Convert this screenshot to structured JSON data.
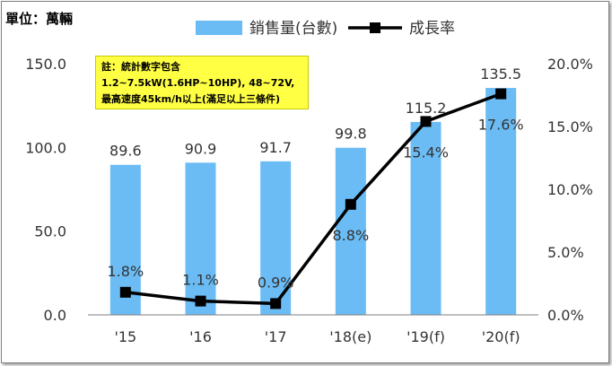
{
  "unit_label": "單位：萬輛",
  "note": {
    "line1": "註：統計數字包含",
    "line2": "1.2~7.5kW(1.6HP~10HP), 48~72V,",
    "line3": "最高速度45km/h以上(滿足以上三條件)"
  },
  "colors": {
    "bar": "#6bbcf5",
    "line": "#000000"
  },
  "chart_data": {
    "type": "bar",
    "categories": [
      "'15",
      "'16",
      "'17",
      "'18(e)",
      "'19(f)",
      "'20(f)"
    ],
    "series": [
      {
        "name": "銷售量(台數)",
        "type": "bar",
        "axis": "left",
        "values": [
          89.6,
          90.9,
          91.7,
          99.8,
          115.2,
          135.5
        ],
        "labels": [
          "89.6",
          "90.9",
          "91.7",
          "99.8",
          "115.2",
          "135.5"
        ]
      },
      {
        "name": "成長率",
        "type": "line",
        "axis": "right",
        "values": [
          1.8,
          1.1,
          0.9,
          8.8,
          15.4,
          17.6
        ],
        "labels": [
          "1.8%",
          "1.1%",
          "0.9%",
          "8.8%",
          "15.4%",
          "17.6%"
        ]
      }
    ],
    "left_axis": {
      "ylim": [
        0,
        150
      ],
      "ticks": [
        "0.0",
        "50.0",
        "100.0",
        "150.0"
      ],
      "tick_values": [
        0,
        50,
        100,
        150
      ]
    },
    "right_axis": {
      "ylim": [
        0,
        20
      ],
      "ticks": [
        "0.0%",
        "5.0%",
        "10.0%",
        "15.0%",
        "20.0%"
      ],
      "tick_values": [
        0,
        5,
        10,
        15,
        20
      ]
    },
    "legend_position": "top",
    "grid": false
  }
}
